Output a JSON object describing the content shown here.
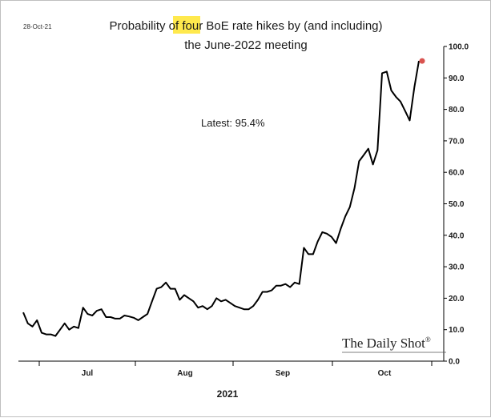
{
  "date_stamp": "28-Oct-21",
  "title": {
    "pre": "Probability of ",
    "highlight": "four",
    "post": " BoE rate hikes by (and including)",
    "line2": "the June-2022 meeting"
  },
  "annotation": "Latest:  95.4%",
  "brand": "The Daily Shot",
  "brand_mark": "®",
  "colors": {
    "line": "#000000",
    "highlight": "#ffe94d",
    "end_marker": "#d9534f"
  },
  "chart_data": {
    "type": "line",
    "title": "Probability of four BoE rate hikes by (and including) the June-2022 meeting",
    "xlabel": "2021",
    "ylabel": "",
    "ylim": [
      0,
      100
    ],
    "y_ticks": [
      "0.0",
      "10.0",
      "20.0",
      "30.0",
      "40.0",
      "50.0",
      "60.0",
      "70.0",
      "80.0",
      "90.0",
      "100.0"
    ],
    "x_tick_labels": [
      "Jul",
      "Aug",
      "Sep",
      "Oct"
    ],
    "x_axis_label": "2021",
    "grid": false,
    "y_axis_position": "right",
    "latest": 95.4,
    "values": [
      15.5,
      12,
      11,
      13,
      9,
      8.5,
      8.5,
      8,
      10,
      12,
      10,
      11,
      10.5,
      17,
      15,
      14.5,
      16,
      16.5,
      14,
      14,
      13.5,
      13.5,
      14.5,
      14.2,
      13.8,
      13,
      14,
      15,
      19,
      23,
      23.5,
      25,
      23,
      23,
      19.5,
      21,
      20,
      19,
      17,
      17.5,
      16.5,
      17.5,
      20,
      19,
      19.5,
      18.5,
      17.5,
      17,
      16.5,
      16.5,
      17.5,
      19.5,
      22,
      22,
      22.5,
      24,
      24,
      24.5,
      23.5,
      25,
      24.5,
      36,
      34,
      34,
      38,
      41,
      40.5,
      39.5,
      37.5,
      42,
      46,
      49,
      55,
      63.5,
      65.5,
      67.5,
      62.5,
      67,
      91.5,
      92,
      86,
      84,
      82.5,
      79.5,
      76.5,
      87,
      95.4
    ]
  }
}
